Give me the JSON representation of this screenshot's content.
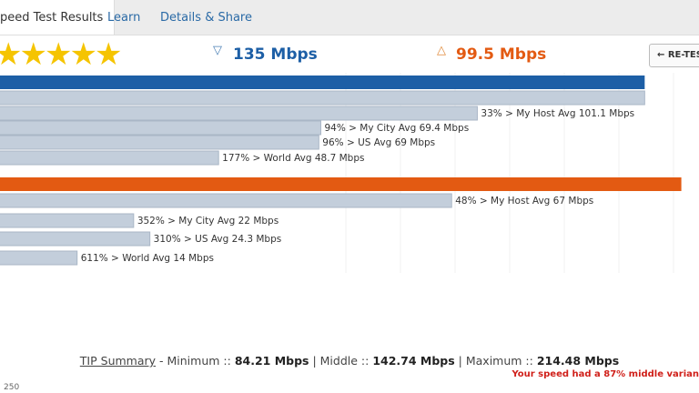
{
  "tabs": [
    "peed Test Results",
    "Learn",
    "Details & Share"
  ],
  "rating_stars": 5,
  "download": {
    "text": "135 Mbps",
    "value": 135,
    "color": "#1d5fa6",
    "xlim": [
      0,
      146
    ],
    "comparisons": [
      {
        "label": "33% > My Host Avg 101.1 Mbps",
        "value": 101.1
      },
      {
        "label": "94% > My City Avg 69.4 Mbps",
        "value": 69.4
      },
      {
        "label": "96% > US Avg 69 Mbps",
        "value": 69
      },
      {
        "label": "177% > World Avg 48.7 Mbps",
        "value": 48.7
      }
    ]
  },
  "upload": {
    "text": "99.5 Mbps",
    "value": 99.5,
    "color": "#e35a12",
    "xlim": [
      0,
      102
    ],
    "comparisons": [
      {
        "label": "48% > My Host Avg 67 Mbps",
        "value": 67
      },
      {
        "label": "352% > My City Avg 22 Mbps",
        "value": 22
      },
      {
        "label": "310% > US Avg 24.3 Mbps",
        "value": 24.3
      },
      {
        "label": "611% > World Avg 14 Mbps",
        "value": 14
      }
    ]
  },
  "retest_button": "← RE-TES",
  "summary": {
    "link": "TIP Summary",
    "min_label": " - Minimum :: ",
    "min": "84.21 Mbps",
    "mid_label": " | Middle :: ",
    "mid": "142.74 Mbps",
    "max_label": " | Maximum :: ",
    "max": "214.48 Mbps"
  },
  "variance_note": "Your speed had a 87% middle varian",
  "axis_label": "250"
}
